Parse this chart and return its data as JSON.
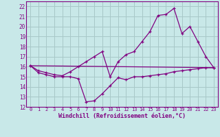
{
  "xlabel": "Windchill (Refroidissement éolien,°C)",
  "background_color": "#c8e8e8",
  "grid_color": "#a8c8c8",
  "line_color": "#800080",
  "xlim": [
    -0.5,
    23.5
  ],
  "ylim": [
    12,
    22.5
  ],
  "xticks": [
    0,
    1,
    2,
    3,
    4,
    5,
    6,
    7,
    8,
    9,
    10,
    11,
    12,
    13,
    14,
    15,
    16,
    17,
    18,
    19,
    20,
    21,
    22,
    23
  ],
  "yticks": [
    12,
    13,
    14,
    15,
    16,
    17,
    18,
    19,
    20,
    21,
    22
  ],
  "series1_x": [
    0,
    1,
    2,
    3,
    4,
    5,
    6,
    7,
    8,
    9,
    10,
    11,
    12,
    13,
    14,
    15,
    16,
    17,
    18,
    19,
    20,
    21,
    22,
    23
  ],
  "series1_y": [
    16.1,
    15.4,
    15.2,
    15.0,
    15.0,
    15.0,
    14.8,
    12.5,
    12.6,
    13.3,
    14.1,
    14.9,
    14.7,
    15.0,
    15.0,
    15.1,
    15.2,
    15.3,
    15.5,
    15.6,
    15.7,
    15.8,
    15.9,
    15.9
  ],
  "series2_x": [
    0,
    1,
    2,
    3,
    4,
    5,
    6,
    7,
    8,
    9,
    10,
    11,
    12,
    13,
    14,
    15,
    16,
    17,
    18,
    19,
    20,
    21,
    22,
    23
  ],
  "series2_y": [
    16.1,
    15.6,
    15.4,
    15.2,
    15.1,
    15.5,
    16.0,
    16.5,
    17.0,
    17.5,
    15.0,
    16.5,
    17.2,
    17.5,
    18.5,
    19.5,
    21.1,
    21.2,
    21.8,
    19.3,
    20.0,
    18.5,
    17.0,
    15.9
  ],
  "series3_x": [
    0,
    23
  ],
  "series3_y": [
    16.1,
    15.9
  ]
}
